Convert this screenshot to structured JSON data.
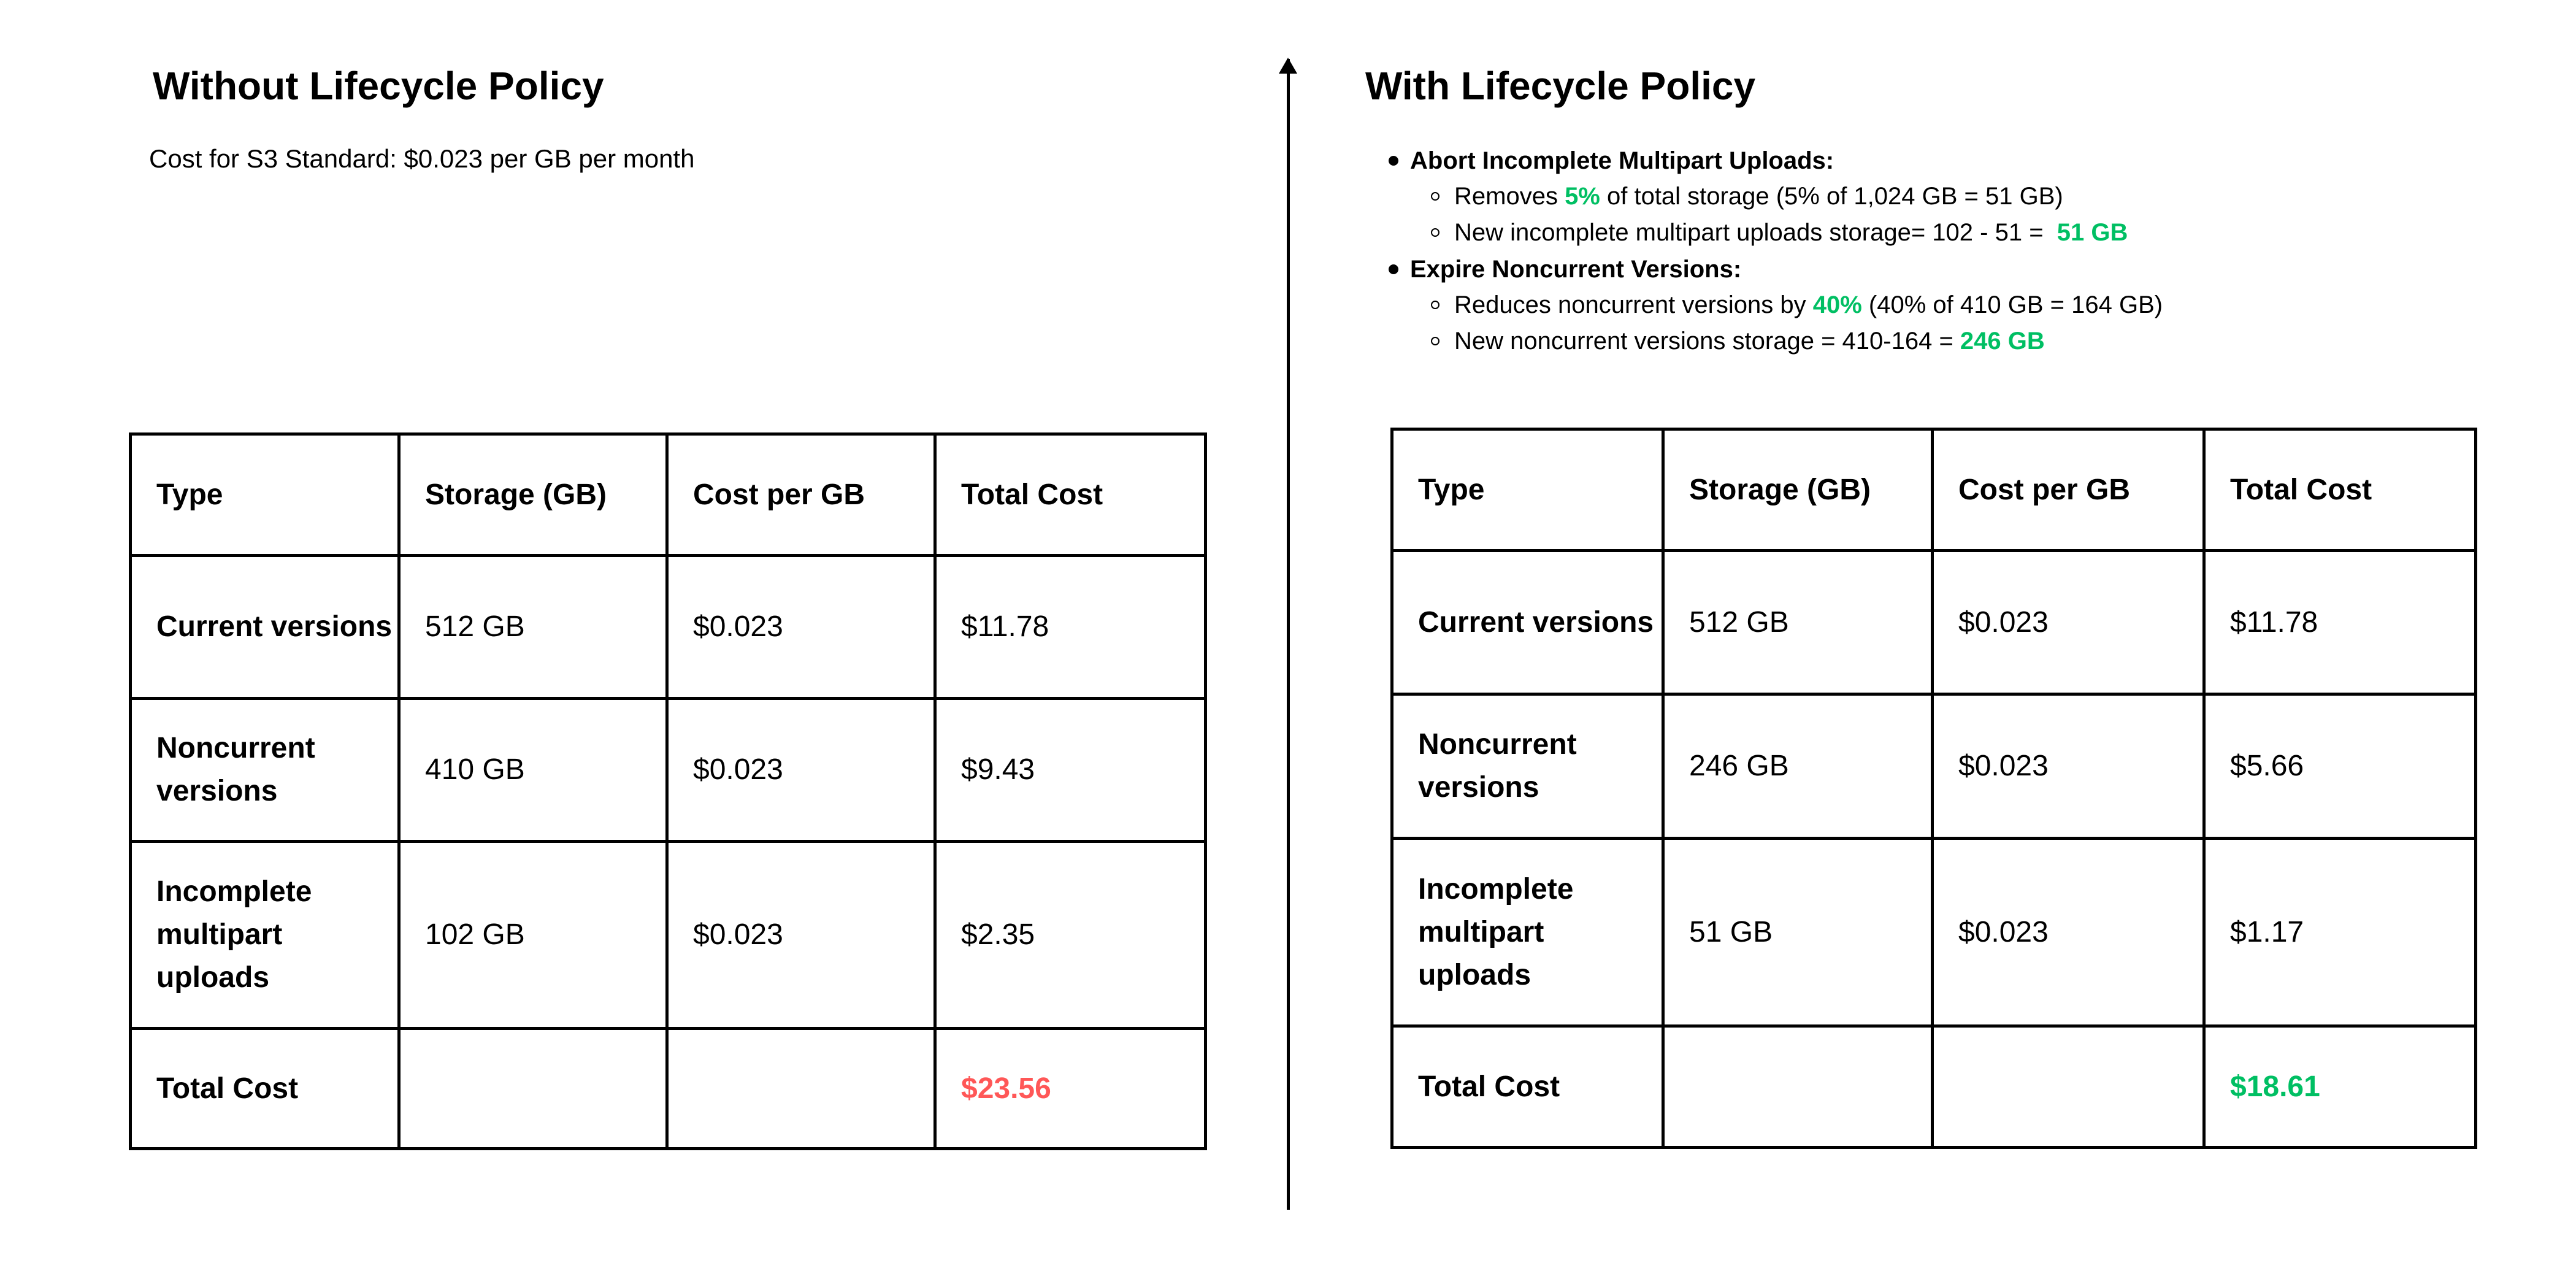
{
  "left": {
    "title": "Without Lifecycle Policy",
    "subtitle": "Cost for S3 Standard: $0.023 per GB per month",
    "table": {
      "headers": [
        "Type",
        "Storage (GB)",
        "Cost per GB",
        "Total Cost"
      ],
      "rows": [
        [
          "Current versions",
          "512 GB",
          "$0.023",
          "$11.78"
        ],
        [
          "Noncurrent versions",
          "410 GB",
          "$0.023",
          "$9.43"
        ],
        [
          "Incomplete multipart uploads",
          "102 GB",
          "$0.023",
          "$2.35"
        ],
        [
          "Total Cost",
          "",
          "",
          "$23.56"
        ]
      ]
    }
  },
  "right": {
    "title": "With Lifecycle Policy",
    "bullets": [
      {
        "label": "Abort Incomplete Multipart Uploads:",
        "items": [
          {
            "pre": "Removes ",
            "hl": "5%",
            "post": " of total storage (5% of 1,024 GB = 51 GB)"
          },
          {
            "pre": "New incomplete multipart uploads storage= 102 - 51 =  ",
            "hl": "51 GB",
            "post": ""
          }
        ]
      },
      {
        "label": "Expire Noncurrent Versions:",
        "items": [
          {
            "pre": "Reduces noncurrent versions by ",
            "hl": "40%",
            "post": " (40% of 410 GB = 164 GB)"
          },
          {
            "pre": "New noncurrent versions storage = 410-164 = ",
            "hl": "246 GB",
            "post": ""
          }
        ]
      }
    ],
    "table": {
      "headers": [
        "Type",
        "Storage (GB)",
        "Cost per GB",
        "Total Cost"
      ],
      "rows": [
        [
          "Current versions",
          "512 GB",
          "$0.023",
          "$11.78"
        ],
        [
          "Noncurrent versions",
          "246 GB",
          "$0.023",
          "$5.66"
        ],
        [
          "Incomplete multipart uploads",
          "51 GB",
          "$0.023",
          "$1.17"
        ],
        [
          "Total Cost",
          "",
          "",
          "$18.61"
        ]
      ]
    }
  },
  "colors": {
    "highlight_green": "#00bf63",
    "highlight_red": "#ff5757",
    "text": "#000000"
  }
}
